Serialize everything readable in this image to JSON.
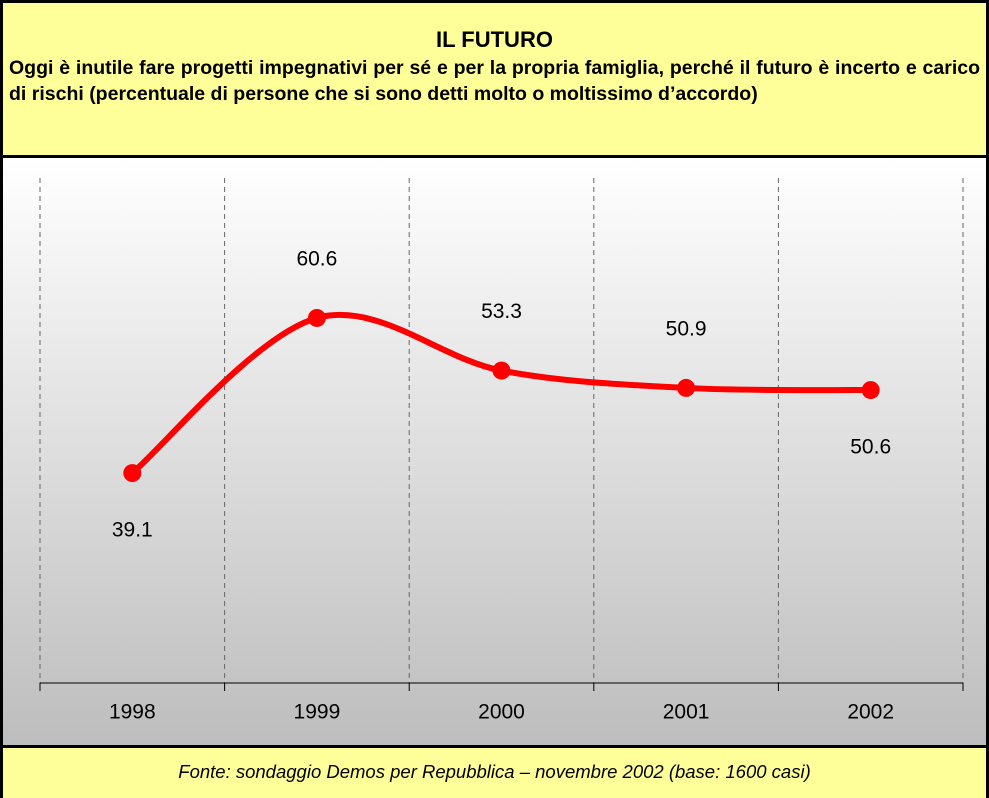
{
  "chart_data": {
    "type": "line",
    "title": "IL FUTURO",
    "subtitle": "Oggi è inutile fare progetti impegnativi per sé e per la propria famiglia, perché il futuro è incerto e carico di rischi (percentuale di persone che si sono detti molto o moltissimo d’accordo)",
    "source": "Fonte: sondaggio Demos per Repubblica – novembre 2002 (base: 1600 casi)",
    "categories": [
      "1998",
      "1999",
      "2000",
      "2001",
      "2002"
    ],
    "values": [
      39.1,
      60.6,
      53.3,
      50.9,
      50.6
    ],
    "color": "#ff0000",
    "ylim": [
      10,
      80
    ]
  }
}
